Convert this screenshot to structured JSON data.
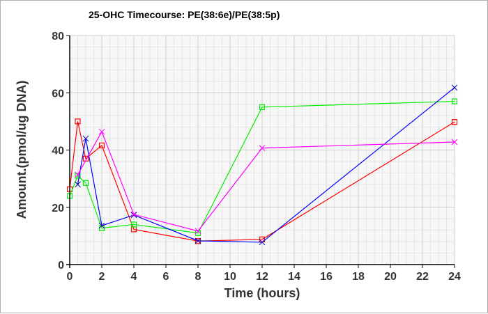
{
  "chart_data": {
    "type": "line",
    "title": "25-OHC Timecourse: PE(38:6e)/PE(38:5p)",
    "xlabel": "Time (hours)",
    "ylabel": "Amount.(pmol/ug DNA)",
    "xlim": [
      0,
      24
    ],
    "ylim": [
      0,
      80
    ],
    "xticks": [
      0,
      2,
      4,
      6,
      8,
      10,
      12,
      14,
      16,
      18,
      20,
      22,
      24
    ],
    "yticks": [
      0,
      20,
      40,
      60,
      80
    ],
    "grid": true,
    "series": [
      {
        "name": "red",
        "color": "#ff0000",
        "marker": "square",
        "x": [
          0,
          0.5,
          1,
          2,
          4,
          8,
          12,
          24
        ],
        "y": [
          26.3,
          50,
          37,
          41.6,
          12.3,
          8.2,
          8.8,
          49.8
        ]
      },
      {
        "name": "green",
        "color": "#00ee00",
        "marker": "square",
        "x": [
          0,
          0.5,
          1,
          2,
          4,
          8,
          12,
          24
        ],
        "y": [
          24,
          31,
          28.5,
          12.7,
          14,
          11,
          55,
          57
        ]
      },
      {
        "name": "blue",
        "color": "#0000ff",
        "marker": "x",
        "x": [
          0.5,
          1,
          2,
          4,
          8,
          12,
          24
        ],
        "y": [
          28,
          44,
          13.6,
          17.3,
          8.3,
          7.8,
          61.8
        ]
      },
      {
        "name": "magenta",
        "color": "#ff00ff",
        "marker": "x",
        "x": [
          0.5,
          2,
          4,
          8,
          12,
          24
        ],
        "y": [
          31.4,
          46.4,
          17.5,
          11.7,
          40.7,
          42.8
        ]
      }
    ]
  }
}
